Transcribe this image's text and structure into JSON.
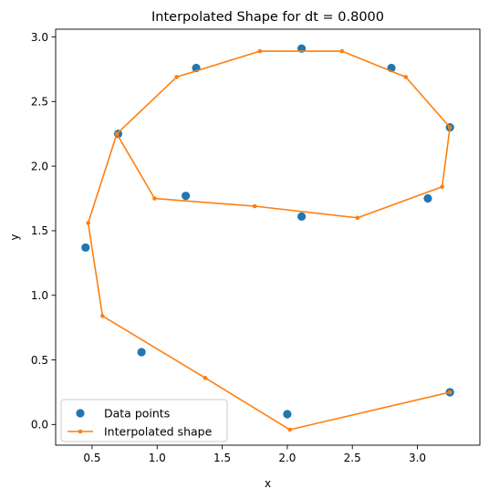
{
  "chart_data": {
    "type": "line",
    "title": "Interpolated Shape for dt = 0.8000",
    "xlabel": "x",
    "ylabel": "y",
    "xlim": [
      0.22,
      3.48
    ],
    "ylim": [
      -0.16,
      3.06
    ],
    "x_ticks": [
      0.5,
      1.0,
      1.5,
      2.0,
      2.5,
      3.0
    ],
    "y_ticks": [
      0.0,
      0.5,
      1.0,
      1.5,
      2.0,
      2.5,
      3.0
    ],
    "x_tick_labels": [
      "0.5",
      "1.0",
      "1.5",
      "2.0",
      "2.5",
      "3.0"
    ],
    "y_tick_labels": [
      "0.0",
      "0.5",
      "1.0",
      "1.5",
      "2.0",
      "2.5",
      "3.0"
    ],
    "grid": false,
    "legend_position": "lower-left",
    "series": [
      {
        "name": "Data points",
        "style": "markers",
        "color": "#1f77b4",
        "points": [
          [
            3.25,
            0.25
          ],
          [
            2.0,
            0.08
          ],
          [
            0.88,
            0.56
          ],
          [
            0.45,
            1.37
          ],
          [
            0.7,
            2.25
          ],
          [
            1.3,
            2.76
          ],
          [
            2.11,
            2.91
          ],
          [
            2.8,
            2.76
          ],
          [
            3.25,
            2.3
          ],
          [
            3.08,
            1.75
          ],
          [
            2.11,
            1.61
          ],
          [
            1.22,
            1.77
          ]
        ]
      },
      {
        "name": "Interpolated shape",
        "style": "line-markers",
        "color": "#ff7f0e",
        "points": [
          [
            3.25,
            0.25
          ],
          [
            2.02,
            -0.04
          ],
          [
            1.37,
            0.36
          ],
          [
            0.58,
            0.84
          ],
          [
            0.47,
            1.56
          ],
          [
            0.69,
            2.25
          ],
          [
            1.15,
            2.69
          ],
          [
            1.79,
            2.89
          ],
          [
            2.42,
            2.89
          ],
          [
            2.91,
            2.69
          ],
          [
            3.25,
            2.3
          ],
          [
            3.19,
            1.84
          ],
          [
            2.54,
            1.6
          ],
          [
            1.75,
            1.69
          ],
          [
            0.98,
            1.75
          ],
          [
            0.69,
            2.25
          ]
        ]
      }
    ]
  }
}
